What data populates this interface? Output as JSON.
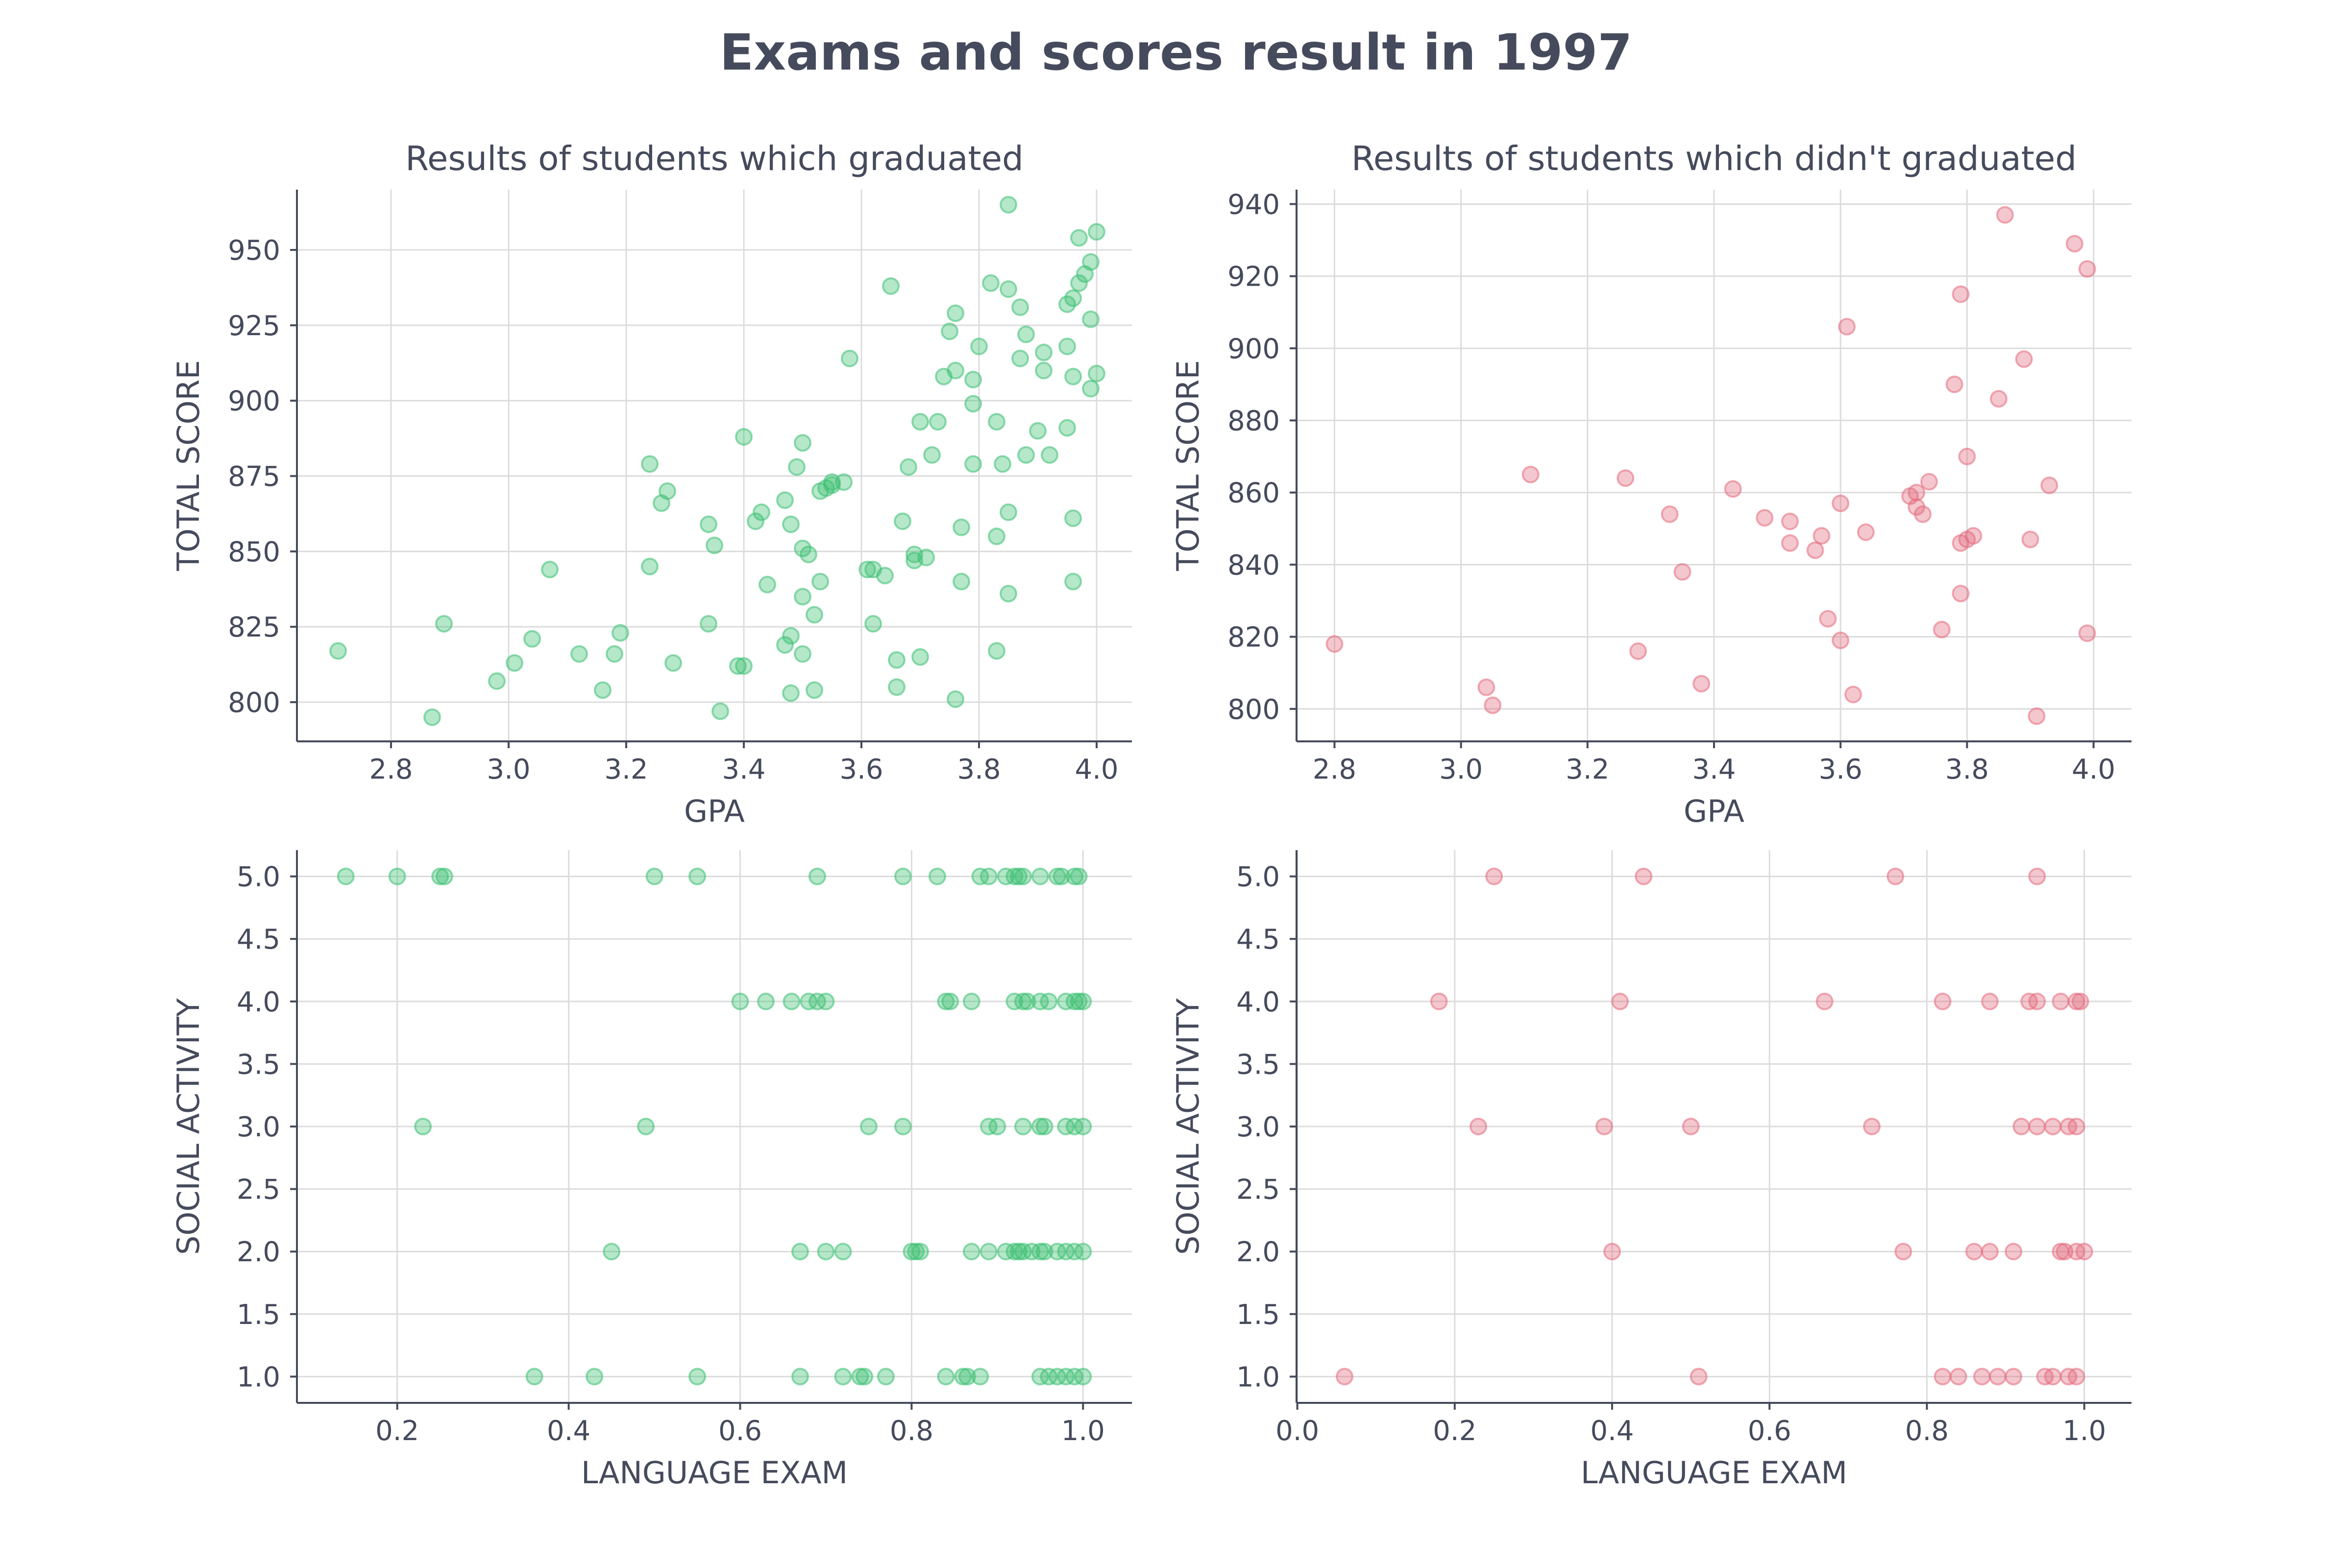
{
  "title": "Exams and scores result in 1997",
  "colors": {
    "graduated": "#3cbf72",
    "not_graduated": "#e36c7e",
    "text": "#454b5c"
  },
  "chart_data": [
    {
      "id": "gpa-grad",
      "type": "scatter",
      "title": "Results of students which graduated",
      "xlabel": "GPA",
      "ylabel": "TOTAL SCORE",
      "xlim": [
        2.64,
        4.06
      ],
      "ylim": [
        787,
        970
      ],
      "xticks": [
        2.8,
        3.0,
        3.2,
        3.4,
        3.6,
        3.8,
        4.0
      ],
      "xtick_decimals": 1,
      "yticks": [
        800,
        825,
        850,
        875,
        900,
        925,
        950
      ],
      "ytick_decimals": 0,
      "color": "graduated",
      "points": [
        [
          2.71,
          817
        ],
        [
          2.87,
          795
        ],
        [
          2.89,
          826
        ],
        [
          2.98,
          807
        ],
        [
          3.01,
          813
        ],
        [
          3.04,
          821
        ],
        [
          3.07,
          844
        ],
        [
          3.12,
          816
        ],
        [
          3.16,
          804
        ],
        [
          3.18,
          816
        ],
        [
          3.19,
          823
        ],
        [
          3.24,
          879
        ],
        [
          3.24,
          845
        ],
        [
          3.26,
          866
        ],
        [
          3.27,
          870
        ],
        [
          3.28,
          813
        ],
        [
          3.34,
          859
        ],
        [
          3.34,
          826
        ],
        [
          3.35,
          852
        ],
        [
          3.36,
          797
        ],
        [
          3.39,
          812
        ],
        [
          3.4,
          812
        ],
        [
          3.4,
          888
        ],
        [
          3.42,
          860
        ],
        [
          3.43,
          863
        ],
        [
          3.44,
          839
        ],
        [
          3.47,
          867
        ],
        [
          3.47,
          819
        ],
        [
          3.48,
          859
        ],
        [
          3.48,
          822
        ],
        [
          3.48,
          803
        ],
        [
          3.49,
          878
        ],
        [
          3.5,
          886
        ],
        [
          3.5,
          851
        ],
        [
          3.5,
          835
        ],
        [
          3.5,
          816
        ],
        [
          3.51,
          849
        ],
        [
          3.52,
          829
        ],
        [
          3.52,
          804
        ],
        [
          3.53,
          870
        ],
        [
          3.53,
          840
        ],
        [
          3.54,
          871
        ],
        [
          3.55,
          873
        ],
        [
          3.55,
          872
        ],
        [
          3.57,
          873
        ],
        [
          3.58,
          914
        ],
        [
          3.61,
          844
        ],
        [
          3.62,
          826
        ],
        [
          3.62,
          844
        ],
        [
          3.64,
          842
        ],
        [
          3.65,
          938
        ],
        [
          3.66,
          814
        ],
        [
          3.66,
          805
        ],
        [
          3.67,
          860
        ],
        [
          3.68,
          878
        ],
        [
          3.69,
          849
        ],
        [
          3.69,
          847
        ],
        [
          3.7,
          815
        ],
        [
          3.7,
          893
        ],
        [
          3.71,
          848
        ],
        [
          3.72,
          882
        ],
        [
          3.73,
          893
        ],
        [
          3.74,
          908
        ],
        [
          3.75,
          923
        ],
        [
          3.76,
          929
        ],
        [
          3.76,
          910
        ],
        [
          3.76,
          801
        ],
        [
          3.77,
          840
        ],
        [
          3.77,
          858
        ],
        [
          3.79,
          879
        ],
        [
          3.79,
          899
        ],
        [
          3.79,
          907
        ],
        [
          3.8,
          918
        ],
        [
          3.82,
          939
        ],
        [
          3.83,
          893
        ],
        [
          3.83,
          855
        ],
        [
          3.83,
          817
        ],
        [
          3.84,
          879
        ],
        [
          3.85,
          863
        ],
        [
          3.85,
          836
        ],
        [
          3.85,
          937
        ],
        [
          3.85,
          965
        ],
        [
          3.87,
          931
        ],
        [
          3.87,
          914
        ],
        [
          3.88,
          922
        ],
        [
          3.88,
          882
        ],
        [
          3.9,
          890
        ],
        [
          3.91,
          916
        ],
        [
          3.91,
          910
        ],
        [
          3.92,
          882
        ],
        [
          3.95,
          932
        ],
        [
          3.95,
          918
        ],
        [
          3.95,
          891
        ],
        [
          3.96,
          934
        ],
        [
          3.96,
          908
        ],
        [
          3.96,
          861
        ],
        [
          3.96,
          840
        ],
        [
          3.97,
          939
        ],
        [
          3.97,
          954
        ],
        [
          3.98,
          942
        ],
        [
          3.99,
          946
        ],
        [
          3.99,
          927
        ],
        [
          3.99,
          904
        ],
        [
          4.0,
          956
        ],
        [
          4.0,
          909
        ]
      ]
    },
    {
      "id": "gpa-nograd",
      "type": "scatter",
      "title": "Results of students which didn't graduated",
      "xlabel": "GPA",
      "ylabel": "TOTAL SCORE",
      "xlim": [
        2.74,
        4.06
      ],
      "ylim": [
        791,
        944
      ],
      "xticks": [
        2.8,
        3.0,
        3.2,
        3.4,
        3.6,
        3.8,
        4.0
      ],
      "xtick_decimals": 1,
      "yticks": [
        800,
        820,
        840,
        860,
        880,
        900,
        920,
        940
      ],
      "ytick_decimals": 0,
      "color": "not_graduated",
      "points": [
        [
          2.8,
          818
        ],
        [
          3.04,
          806
        ],
        [
          3.05,
          801
        ],
        [
          3.11,
          865
        ],
        [
          3.26,
          864
        ],
        [
          3.28,
          816
        ],
        [
          3.33,
          854
        ],
        [
          3.35,
          838
        ],
        [
          3.38,
          807
        ],
        [
          3.43,
          861
        ],
        [
          3.48,
          853
        ],
        [
          3.52,
          852
        ],
        [
          3.52,
          846
        ],
        [
          3.56,
          844
        ],
        [
          3.57,
          848
        ],
        [
          3.58,
          825
        ],
        [
          3.6,
          857
        ],
        [
          3.6,
          819
        ],
        [
          3.61,
          906
        ],
        [
          3.62,
          804
        ],
        [
          3.64,
          849
        ],
        [
          3.71,
          859
        ],
        [
          3.72,
          860
        ],
        [
          3.72,
          856
        ],
        [
          3.73,
          854
        ],
        [
          3.74,
          863
        ],
        [
          3.76,
          822
        ],
        [
          3.78,
          890
        ],
        [
          3.79,
          915
        ],
        [
          3.79,
          846
        ],
        [
          3.79,
          832
        ],
        [
          3.8,
          870
        ],
        [
          3.8,
          847
        ],
        [
          3.81,
          848
        ],
        [
          3.85,
          886
        ],
        [
          3.86,
          937
        ],
        [
          3.89,
          897
        ],
        [
          3.9,
          847
        ],
        [
          3.91,
          798
        ],
        [
          3.93,
          862
        ],
        [
          3.97,
          929
        ],
        [
          3.99,
          922
        ],
        [
          3.99,
          821
        ]
      ]
    },
    {
      "id": "lang-grad",
      "type": "scatter",
      "title": "",
      "xlabel": "LANGUAGE EXAM",
      "ylabel": "SOCIAL ACTIVITY",
      "xlim": [
        0.083,
        1.057
      ],
      "ylim": [
        0.79,
        5.21
      ],
      "xticks": [
        0.2,
        0.4,
        0.6,
        0.8,
        1.0
      ],
      "xtick_decimals": 1,
      "yticks": [
        1.0,
        1.5,
        2.0,
        2.5,
        3.0,
        3.5,
        4.0,
        4.5,
        5.0
      ],
      "ytick_decimals": 1,
      "color": "graduated",
      "points": [
        [
          0.14,
          5
        ],
        [
          0.2,
          5
        ],
        [
          0.25,
          5
        ],
        [
          0.255,
          5
        ],
        [
          0.5,
          5
        ],
        [
          0.55,
          5
        ],
        [
          0.69,
          5
        ],
        [
          0.79,
          5
        ],
        [
          0.83,
          5
        ],
        [
          0.88,
          5
        ],
        [
          0.89,
          5
        ],
        [
          0.91,
          5
        ],
        [
          0.92,
          5
        ],
        [
          0.925,
          5
        ],
        [
          0.93,
          5
        ],
        [
          0.95,
          5
        ],
        [
          0.97,
          5
        ],
        [
          0.975,
          5
        ],
        [
          0.99,
          5
        ],
        [
          0.995,
          5
        ],
        [
          0.6,
          4
        ],
        [
          0.63,
          4
        ],
        [
          0.66,
          4
        ],
        [
          0.68,
          4
        ],
        [
          0.69,
          4
        ],
        [
          0.7,
          4
        ],
        [
          0.84,
          4
        ],
        [
          0.845,
          4
        ],
        [
          0.87,
          4
        ],
        [
          0.92,
          4
        ],
        [
          0.93,
          4
        ],
        [
          0.935,
          4
        ],
        [
          0.95,
          4
        ],
        [
          0.96,
          4
        ],
        [
          0.98,
          4
        ],
        [
          0.99,
          4
        ],
        [
          0.995,
          4
        ],
        [
          1.0,
          4
        ],
        [
          0.23,
          3
        ],
        [
          0.49,
          3
        ],
        [
          0.75,
          3
        ],
        [
          0.79,
          3
        ],
        [
          0.89,
          3
        ],
        [
          0.9,
          3
        ],
        [
          0.93,
          3
        ],
        [
          0.95,
          3
        ],
        [
          0.955,
          3
        ],
        [
          0.98,
          3
        ],
        [
          0.99,
          3
        ],
        [
          1.0,
          3
        ],
        [
          0.45,
          2
        ],
        [
          0.67,
          2
        ],
        [
          0.7,
          2
        ],
        [
          0.72,
          2
        ],
        [
          0.8,
          2
        ],
        [
          0.805,
          2
        ],
        [
          0.81,
          2
        ],
        [
          0.87,
          2
        ],
        [
          0.89,
          2
        ],
        [
          0.91,
          2
        ],
        [
          0.92,
          2
        ],
        [
          0.925,
          2
        ],
        [
          0.93,
          2
        ],
        [
          0.94,
          2
        ],
        [
          0.95,
          2
        ],
        [
          0.955,
          2
        ],
        [
          0.97,
          2
        ],
        [
          0.98,
          2
        ],
        [
          0.99,
          2
        ],
        [
          1.0,
          2
        ],
        [
          0.36,
          1
        ],
        [
          0.43,
          1
        ],
        [
          0.55,
          1
        ],
        [
          0.67,
          1
        ],
        [
          0.72,
          1
        ],
        [
          0.74,
          1
        ],
        [
          0.745,
          1
        ],
        [
          0.77,
          1
        ],
        [
          0.84,
          1
        ],
        [
          0.86,
          1
        ],
        [
          0.865,
          1
        ],
        [
          0.88,
          1
        ],
        [
          0.95,
          1
        ],
        [
          0.96,
          1
        ],
        [
          0.97,
          1
        ],
        [
          0.98,
          1
        ],
        [
          0.99,
          1
        ],
        [
          1.0,
          1
        ]
      ]
    },
    {
      "id": "lang-nograd",
      "type": "scatter",
      "title": "",
      "xlabel": "LANGUAGE EXAM",
      "ylabel": "SOCIAL ACTIVITY",
      "xlim": [
        -0.001,
        1.06
      ],
      "ylim": [
        0.79,
        5.21
      ],
      "xticks": [
        0.0,
        0.2,
        0.4,
        0.6,
        0.8,
        1.0
      ],
      "xtick_decimals": 1,
      "yticks": [
        1.0,
        1.5,
        2.0,
        2.5,
        3.0,
        3.5,
        4.0,
        4.5,
        5.0
      ],
      "ytick_decimals": 1,
      "color": "not_graduated",
      "points": [
        [
          0.25,
          5
        ],
        [
          0.44,
          5
        ],
        [
          0.76,
          5
        ],
        [
          0.94,
          5
        ],
        [
          0.18,
          4
        ],
        [
          0.41,
          4
        ],
        [
          0.67,
          4
        ],
        [
          0.82,
          4
        ],
        [
          0.88,
          4
        ],
        [
          0.93,
          4
        ],
        [
          0.94,
          4
        ],
        [
          0.97,
          4
        ],
        [
          0.99,
          4
        ],
        [
          0.995,
          4
        ],
        [
          0.23,
          3
        ],
        [
          0.39,
          3
        ],
        [
          0.5,
          3
        ],
        [
          0.73,
          3
        ],
        [
          0.92,
          3
        ],
        [
          0.94,
          3
        ],
        [
          0.96,
          3
        ],
        [
          0.98,
          3
        ],
        [
          0.99,
          3
        ],
        [
          0.4,
          2
        ],
        [
          0.77,
          2
        ],
        [
          0.86,
          2
        ],
        [
          0.88,
          2
        ],
        [
          0.91,
          2
        ],
        [
          0.97,
          2
        ],
        [
          0.975,
          2
        ],
        [
          0.99,
          2
        ],
        [
          1.0,
          2
        ],
        [
          0.06,
          1
        ],
        [
          0.51,
          1
        ],
        [
          0.82,
          1
        ],
        [
          0.84,
          1
        ],
        [
          0.87,
          1
        ],
        [
          0.89,
          1
        ],
        [
          0.91,
          1
        ],
        [
          0.95,
          1
        ],
        [
          0.96,
          1
        ],
        [
          0.98,
          1
        ],
        [
          0.99,
          1
        ]
      ]
    }
  ]
}
